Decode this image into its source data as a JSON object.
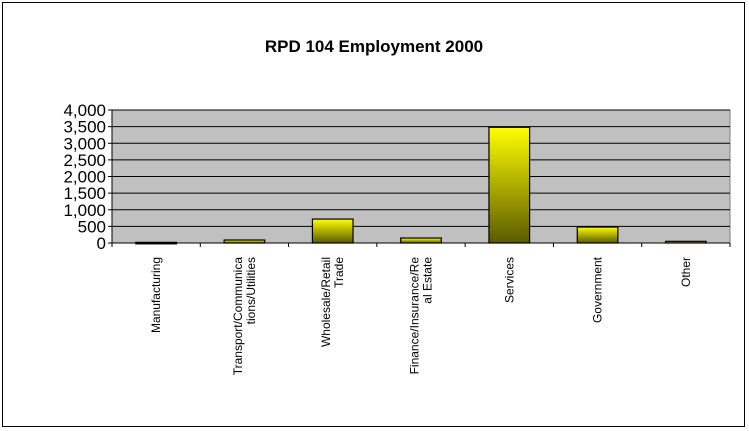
{
  "chart_data": {
    "type": "bar",
    "title": "RPD 104 Employment 2000",
    "xlabel": "",
    "ylabel": "",
    "ylim": [
      0,
      4000
    ],
    "yticks": [
      "0",
      "500",
      "1,000",
      "1,500",
      "2,000",
      "2,500",
      "3,000",
      "3,500",
      "4,000"
    ],
    "categories": [
      [
        "Manufacturing"
      ],
      [
        "Transport/Communica",
        "tions/Utilities"
      ],
      [
        "Wholesale/Retail",
        "Trade"
      ],
      [
        "Finance/Insurance/Re",
        "al Estate"
      ],
      [
        "Services"
      ],
      [
        "Government"
      ],
      [
        "Other"
      ]
    ],
    "values": [
      20,
      90,
      720,
      150,
      3480,
      480,
      50
    ],
    "grid": true,
    "legend": "none",
    "colors": {
      "plot_bg": "#c0c0c0",
      "bar_top": "#ffff00",
      "bar_bottom": "#5a5a00",
      "grid": "#000000"
    }
  }
}
